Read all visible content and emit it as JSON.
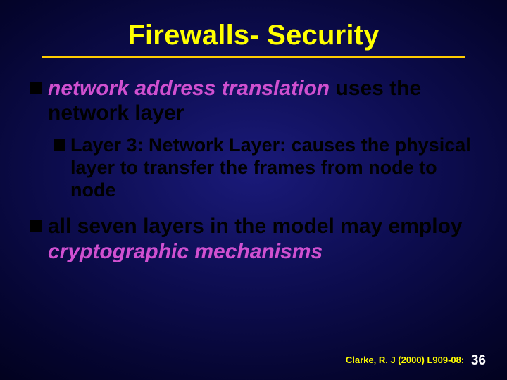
{
  "colors": {
    "title": "#ffff00",
    "underline": "#ffcc00",
    "body": "#000000",
    "emphasis": "#d050d0",
    "bullet": "#000000",
    "footer_text": "#ffff00",
    "footer_num": "#ffffff"
  },
  "title": "Firewalls- Security",
  "bullets": [
    {
      "pre_emph": "",
      "emph": "network address translation",
      "post_emph": " uses the network layer",
      "sub": [
        "Layer 3: Network Layer: causes the physical layer to transfer the frames from node to node"
      ]
    },
    {
      "pre_emph": "all seven layers in the model may employ ",
      "emph": "cryptographic mechanisms",
      "post_emph": "",
      "sub": []
    }
  ],
  "footer": {
    "citation": "Clarke, R. J (2000) L909-08:",
    "page": "36"
  }
}
